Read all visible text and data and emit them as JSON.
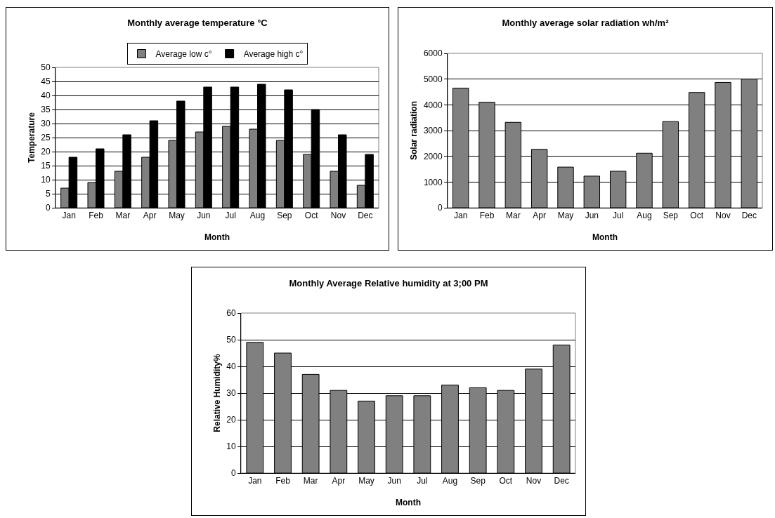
{
  "chart_data": [
    {
      "type": "bar",
      "title": "Monthly average temperature °C",
      "xlabel": "Month",
      "ylabel": "Temperature",
      "categories": [
        "Jan",
        "Feb",
        "Mar",
        "Apr",
        "May",
        "Jun",
        "Jul",
        "Aug",
        "Sep",
        "Oct",
        "Nov",
        "Dec"
      ],
      "series": [
        {
          "name": "Average low c°",
          "color": "#808080",
          "values": [
            7,
            9,
            13,
            18,
            24,
            27,
            29,
            28,
            24,
            19,
            13,
            8
          ]
        },
        {
          "name": "Average high c°",
          "color": "#000000",
          "values": [
            18,
            21,
            26,
            31,
            38,
            43,
            43,
            44,
            42,
            35,
            26,
            19
          ]
        }
      ],
      "ylim": [
        0,
        50
      ],
      "yticks": [
        0,
        5,
        10,
        15,
        20,
        25,
        30,
        35,
        40,
        45,
        50
      ],
      "grid": "y",
      "legend": "top"
    },
    {
      "type": "bar",
      "title": "Monthly average solar radiation wh/m²",
      "xlabel": "Month",
      "ylabel": "Solar radiation",
      "categories": [
        "Jan",
        "Feb",
        "Mar",
        "Apr",
        "May",
        "Jun",
        "Jul",
        "Aug",
        "Sep",
        "Oct",
        "Nov",
        "Dec"
      ],
      "series": [
        {
          "color": "#808080",
          "values": [
            4650,
            4100,
            3320,
            2270,
            1580,
            1230,
            1420,
            2120,
            3350,
            4480,
            4870,
            5000
          ]
        }
      ],
      "ylim": [
        0,
        6000
      ],
      "yticks": [
        0,
        1000,
        2000,
        3000,
        4000,
        5000,
        6000
      ],
      "grid": "y"
    },
    {
      "type": "bar",
      "title": "Monthly Average Relative humidity at 3;00 PM",
      "xlabel": "Month",
      "ylabel": "Relative Humidity%",
      "categories": [
        "Jan",
        "Feb",
        "Mar",
        "Apr",
        "May",
        "Jun",
        "Jul",
        "Aug",
        "Sep",
        "Oct",
        "Nov",
        "Dec"
      ],
      "series": [
        {
          "color": "#808080",
          "values": [
            49,
            45,
            37,
            31,
            27,
            29,
            29,
            33,
            32,
            31,
            39,
            48
          ]
        }
      ],
      "ylim": [
        0,
        60
      ],
      "yticks": [
        0,
        10,
        20,
        30,
        40,
        50,
        60
      ],
      "grid": "y"
    }
  ]
}
